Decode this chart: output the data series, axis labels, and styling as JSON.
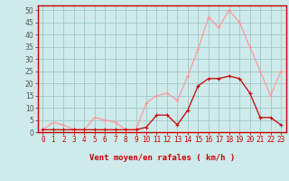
{
  "x": [
    0,
    1,
    2,
    3,
    4,
    5,
    6,
    7,
    8,
    9,
    10,
    11,
    12,
    13,
    14,
    15,
    16,
    17,
    18,
    19,
    20,
    21,
    22,
    23
  ],
  "vent_moyen": [
    1,
    1,
    1,
    1,
    1,
    1,
    1,
    1,
    1,
    1,
    2,
    7,
    7,
    3,
    9,
    19,
    22,
    22,
    23,
    22,
    16,
    6,
    6,
    3
  ],
  "rafales": [
    1,
    4,
    3,
    1,
    1,
    6,
    5,
    4,
    1,
    1,
    12,
    15,
    16,
    13,
    23,
    34,
    47,
    43,
    50,
    45,
    35,
    25,
    15,
    25
  ],
  "bg_color": "#ceeaea",
  "grid_color": "#a0c8c8",
  "line_moyen_color": "#cc0000",
  "line_rafales_color": "#ff9999",
  "xlabel": "Vent moyen/en rafales ( km/h )",
  "yticks": [
    0,
    5,
    10,
    15,
    20,
    25,
    30,
    35,
    40,
    45,
    50
  ],
  "axis_label_fontsize": 6.5,
  "tick_fontsize": 5.5
}
